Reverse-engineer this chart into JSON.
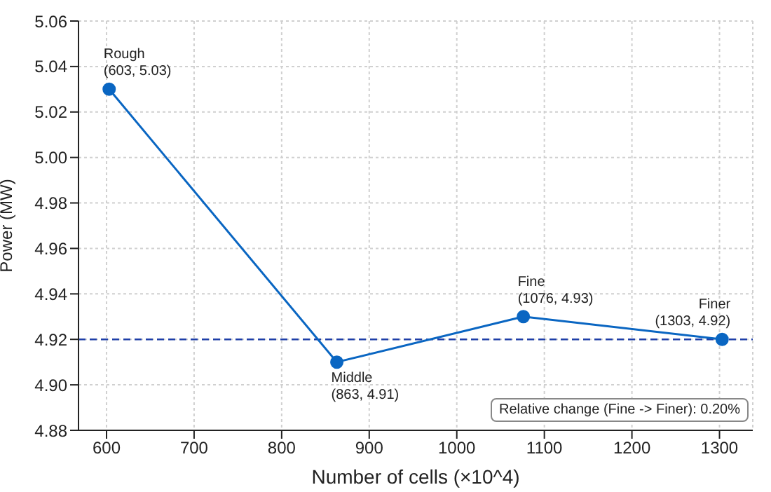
{
  "chart_data": {
    "type": "line",
    "xlabel": "Number of cells (×10^4)",
    "ylabel": "Power (MW)",
    "x": [
      603,
      863,
      1076,
      1303
    ],
    "series": [
      {
        "color": "#0a66c2",
        "values": [
          5.03,
          4.91,
          4.93,
          4.92
        ]
      }
    ],
    "xlim": [
      568,
      1338
    ],
    "xticks": [
      600,
      700,
      800,
      900,
      1000,
      1100,
      1200,
      1300
    ],
    "ylim": [
      4.88,
      5.06
    ],
    "yticks": [
      4.88,
      {
        "value": 4.9,
        "label": "4.90"
      },
      4.92,
      4.94,
      4.96,
      4.98,
      {
        "value": 5,
        "label": "5.00"
      },
      5.02,
      5.04,
      5.06
    ],
    "grid": true,
    "marker": "circle",
    "line_style": "solid",
    "ref_lines": [
      {
        "axis": "y",
        "value": 4.92,
        "color": "#1f3fa8",
        "line_style": "dashed"
      }
    ],
    "annotations": [
      {
        "text": "Rough\n(603, 5.03)",
        "x": 603,
        "y": 5.03
      },
      {
        "text": "Middle\n(863, 4.91)",
        "x": 863,
        "y": 4.91
      },
      {
        "text": "Fine\n(1076, 4.93)",
        "x": 1076,
        "y": 4.93
      },
      {
        "text": "Finer\n(1303, 4.92)",
        "x": 1303,
        "y": 4.92
      },
      "Relative change (Fine -> Finer): 0.20%"
    ]
  }
}
